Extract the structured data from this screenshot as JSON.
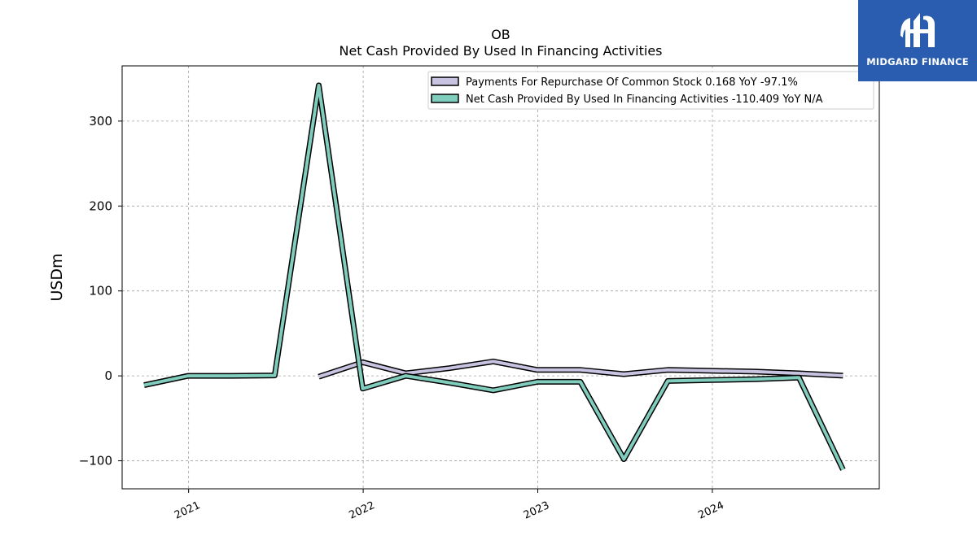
{
  "brand": {
    "name": "MIDGARD FINANCE",
    "background": "#2a5db0"
  },
  "chart_data": {
    "type": "line",
    "title": "OB",
    "subtitle": "Net Cash Provided By Used In Financing Activities",
    "ylabel": "USDm",
    "xlabel": "",
    "ylim": [
      -133,
      365
    ],
    "xlim": [
      "2020-08-15",
      "2024-12-15"
    ],
    "yticks": [
      -100,
      0,
      100,
      200,
      300
    ],
    "ytick_labels": [
      "−100",
      "0",
      "100",
      "200",
      "300"
    ],
    "xticks": [
      "2021-01-01",
      "2022-01-01",
      "2023-01-01",
      "2024-01-01"
    ],
    "xtick_labels": [
      "2021",
      "2022",
      "2023",
      "2024"
    ],
    "grid": true,
    "legend_position": "top-right",
    "series": [
      {
        "name": "Payments For Repurchase Of Common Stock",
        "legend_label": "Payments For Repurchase Of Common Stock  0.168 YoY -97.1%",
        "color": "#c7c3e0",
        "points": [
          [
            "2021-09-30",
            -1
          ],
          [
            "2021-12-31",
            16
          ],
          [
            "2022-03-31",
            3
          ],
          [
            "2022-06-30",
            9
          ],
          [
            "2022-09-30",
            17
          ],
          [
            "2022-12-31",
            7
          ],
          [
            "2023-03-31",
            7
          ],
          [
            "2023-06-30",
            2
          ],
          [
            "2023-09-30",
            7
          ],
          [
            "2023-12-31",
            6
          ],
          [
            "2024-03-31",
            5
          ],
          [
            "2024-06-30",
            3
          ],
          [
            "2024-09-30",
            0.2
          ]
        ]
      },
      {
        "name": "Net Cash Provided By Used In Financing Activities",
        "legend_label": "Net Cash Provided By Used In Financing Activities  -110.409 YoY N/A",
        "color": "#80cdbd",
        "points": [
          [
            "2020-09-30",
            -11
          ],
          [
            "2020-12-31",
            0
          ],
          [
            "2021-03-31",
            0
          ],
          [
            "2021-06-30",
            0.5
          ],
          [
            "2021-09-30",
            342
          ],
          [
            "2021-12-31",
            -15
          ],
          [
            "2022-03-31",
            0
          ],
          [
            "2022-06-30",
            -8
          ],
          [
            "2022-09-30",
            -17
          ],
          [
            "2022-12-31",
            -7
          ],
          [
            "2023-03-31",
            -7
          ],
          [
            "2023-06-30",
            -98
          ],
          [
            "2023-09-30",
            -6
          ],
          [
            "2023-12-31",
            -5
          ],
          [
            "2024-03-31",
            -4
          ],
          [
            "2024-06-30",
            -2
          ],
          [
            "2024-09-30",
            -110.409
          ]
        ]
      }
    ]
  }
}
